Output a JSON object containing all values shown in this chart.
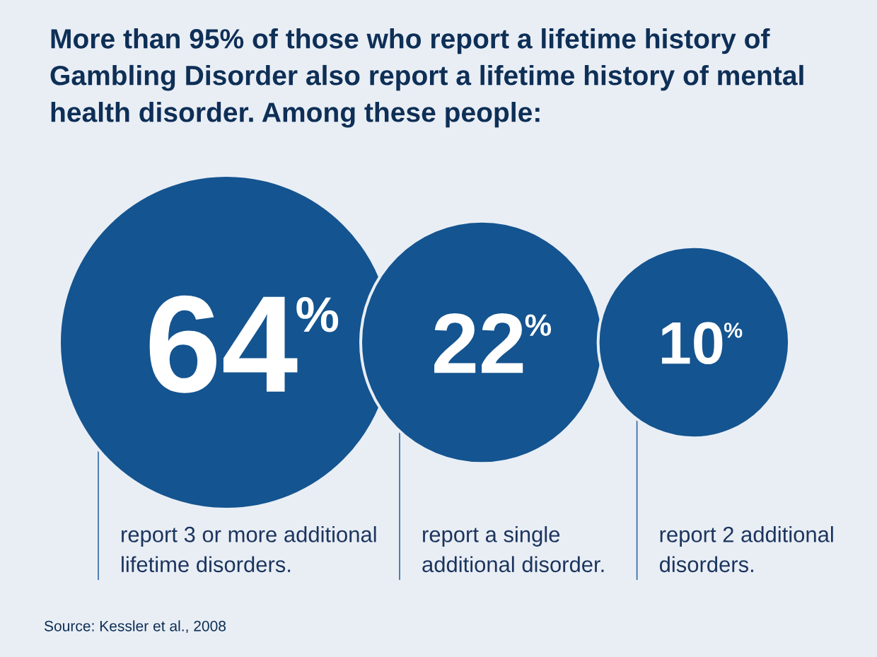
{
  "chart_data": {
    "type": "other",
    "title": "More than 95% of those who report a lifetime history of\nGambling Disorder also report a lifetime history of mental\nhealth disorder. Among these people:",
    "categories": [
      "report 3 or more additional\nlifetime disorders.",
      "report a single\nadditional disorder.",
      "report 2 additional\ndisorders."
    ],
    "values": [
      64,
      22,
      10
    ],
    "value_labels": [
      "64%",
      "22%",
      "10%"
    ],
    "color": "#145490",
    "annotations": [
      "Source: Kessler et al., 2008"
    ]
  }
}
